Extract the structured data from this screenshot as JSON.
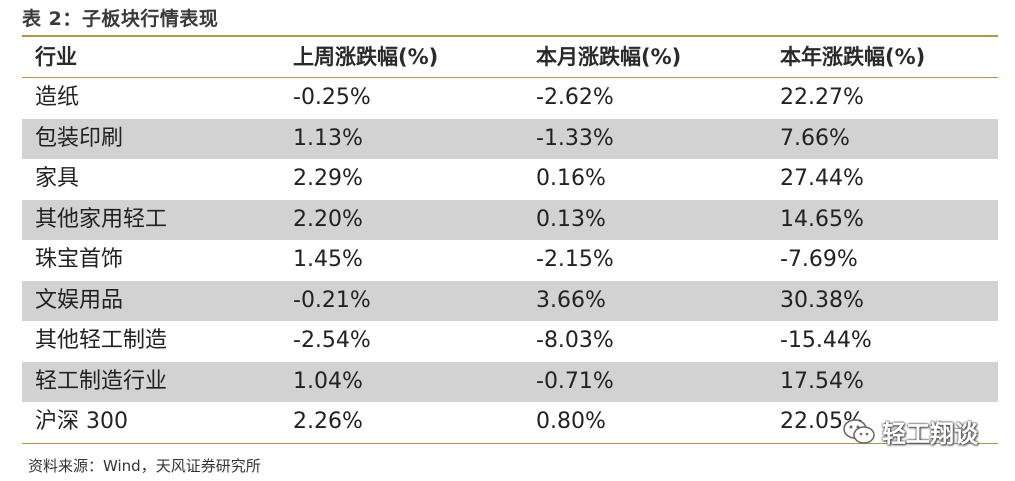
{
  "title": "表 2：子板块行情表现",
  "table": {
    "headers": [
      "行业",
      "上周涨跌幅(%)",
      "本月涨跌幅(%)",
      "本年涨跌幅(%)"
    ],
    "rows": [
      [
        "造纸",
        "-0.25%",
        "-2.62%",
        "22.27%"
      ],
      [
        "包装印刷",
        "1.13%",
        "-1.33%",
        "7.66%"
      ],
      [
        "家具",
        "2.29%",
        "0.16%",
        "27.44%"
      ],
      [
        "其他家用轻工",
        "2.20%",
        "0.13%",
        "14.65%"
      ],
      [
        "珠宝首饰",
        "1.45%",
        "-2.15%",
        "-7.69%"
      ],
      [
        "文娱用品",
        "-0.21%",
        "3.66%",
        "30.38%"
      ],
      [
        "其他轻工制造",
        "-2.54%",
        "-8.03%",
        "-15.44%"
      ],
      [
        "轻工制造行业",
        "1.04%",
        "-0.71%",
        "17.54%"
      ],
      [
        "沪深 300",
        "2.26%",
        "0.80%",
        "22.05%"
      ]
    ]
  },
  "source": "资料来源：Wind，天风证券研究所",
  "watermark": {
    "text": "轻工翔谈",
    "icon": "wechat-icon"
  },
  "colors": {
    "rule": "#b8953f",
    "shade": "#d2d2d2"
  }
}
